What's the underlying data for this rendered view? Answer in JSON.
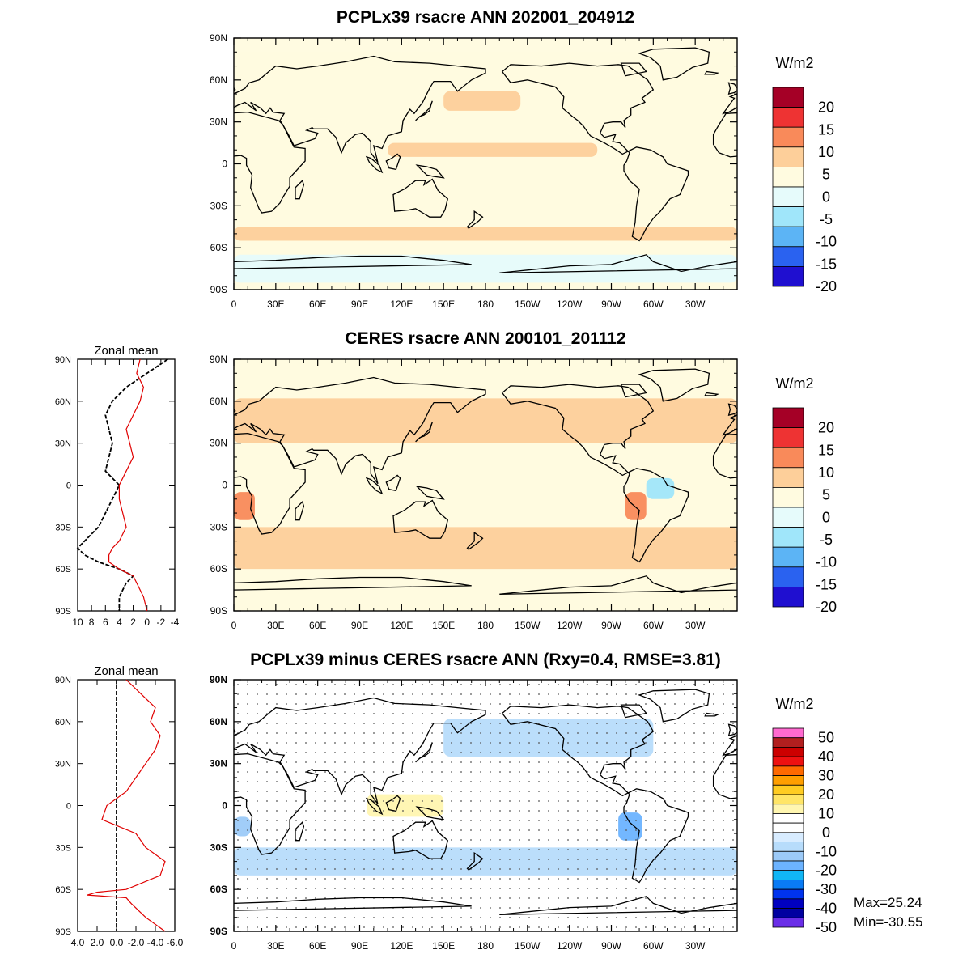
{
  "chart_data": [
    {
      "id": "model",
      "type": "heatmap",
      "title": "PCPLx39 rsacre ANN 202001_204912",
      "xticks": [
        "0",
        "30E",
        "60E",
        "90E",
        "120E",
        "150E",
        "180",
        "150W",
        "120W",
        "90W",
        "60W",
        "30W"
      ],
      "yticks": [
        "90N",
        "60N",
        "30N",
        "0",
        "30S",
        "60S",
        "90S"
      ],
      "colorbar": {
        "units": "W/m2",
        "labels": [
          "20",
          "15",
          "10",
          "5",
          "0",
          "-5",
          "-10",
          "-15",
          "-20"
        ],
        "colors": [
          "#a50026",
          "#ee3333",
          "#f98a5a",
          "#fdcf9a",
          "#fffbe0",
          "#e6fbfb",
          "#a0e6fa",
          "#5cb4f5",
          "#2a62f0",
          "#1f0fd0"
        ]
      },
      "fields": [
        {
          "name": "polar-north",
          "value": 0,
          "lat": [
            90,
            80
          ],
          "lon": [
            0,
            360
          ]
        },
        {
          "name": "north-pacific-band",
          "value": 7,
          "lat": [
            52,
            38
          ],
          "lon": [
            150,
            205
          ]
        },
        {
          "name": "tropical-pacific-band",
          "value": 7,
          "lat": [
            15,
            5
          ],
          "lon": [
            110,
            260
          ]
        },
        {
          "name": "southern-ocean-band",
          "value": 7,
          "lat": [
            -45,
            -55
          ],
          "lon": [
            0,
            360
          ]
        },
        {
          "name": "antarctic-edge",
          "value": -3,
          "lat": [
            -65,
            -85
          ],
          "lon": [
            0,
            360
          ]
        }
      ]
    },
    {
      "id": "obs",
      "type": "heatmap",
      "title": "CERES rsacre ANN 200101_201112",
      "xticks": [
        "0",
        "30E",
        "60E",
        "90E",
        "120E",
        "150E",
        "180",
        "150W",
        "120W",
        "90W",
        "60W",
        "30W"
      ],
      "yticks": [
        "90N",
        "60N",
        "30N",
        "0",
        "30S",
        "60S",
        "90S"
      ],
      "colorbar": {
        "units": "W/m2",
        "labels": [
          "20",
          "15",
          "10",
          "5",
          "0",
          "-5",
          "-10",
          "-15",
          "-20"
        ],
        "colors": [
          "#a50026",
          "#ee3333",
          "#f98a5a",
          "#fdcf9a",
          "#fffbe0",
          "#e6fbfb",
          "#a0e6fa",
          "#5cb4f5",
          "#2a62f0",
          "#1f0fd0"
        ]
      },
      "fields": [
        {
          "name": "north-ocean-band",
          "value": 7,
          "lat": [
            62,
            30
          ],
          "lon": [
            0,
            360
          ]
        },
        {
          "name": "south-ocean-band",
          "value": 7,
          "lat": [
            -30,
            -60
          ],
          "lon": [
            0,
            360
          ]
        },
        {
          "name": "southeast-pacific",
          "value": 12,
          "lat": [
            -5,
            -25
          ],
          "lon": [
            280,
            295
          ]
        },
        {
          "name": "southeast-atlantic",
          "value": 12,
          "lat": [
            -5,
            -25
          ],
          "lon": [
            0,
            15
          ]
        },
        {
          "name": "amazon",
          "value": -7,
          "lat": [
            5,
            -10
          ],
          "lon": [
            295,
            315
          ]
        }
      ],
      "zonal_mean": {
        "title": "Zonal mean",
        "xticks": [
          "10",
          "8",
          "6",
          "4",
          "2",
          "0",
          "-2",
          "-4"
        ],
        "xlim": [
          10,
          -4
        ],
        "lat": [
          90,
          80,
          70,
          60,
          50,
          40,
          30,
          20,
          10,
          0,
          -10,
          -20,
          -30,
          -40,
          -45,
          -50,
          -55,
          -60,
          -65,
          -70,
          -80,
          -90
        ],
        "series": [
          {
            "style": "black-dashed",
            "values": [
              -3,
              0,
              3,
              5,
              6,
              5.5,
              5,
              5.5,
              6,
              4,
              5,
              6,
              7,
              9,
              10,
              9,
              7,
              4,
              2,
              3,
              4,
              4
            ]
          },
          {
            "style": "red-solid",
            "values": [
              1,
              1.5,
              0.5,
              1,
              2,
              3,
              2.5,
              2,
              3,
              4,
              4,
              3.5,
              3,
              4,
              5,
              5.5,
              5.5,
              4,
              2,
              1.5,
              0.5,
              0
            ]
          }
        ]
      }
    },
    {
      "id": "diff",
      "type": "heatmap",
      "title": "PCPLx39 minus CERES rsacre ANN (Rxy=0.4, RMSE=3.81)",
      "xticks": [
        "0",
        "30E",
        "60E",
        "90E",
        "120E",
        "150E",
        "180",
        "150W",
        "120W",
        "90W",
        "60W",
        "30W"
      ],
      "yticks": [
        "90N",
        "60N",
        "30N",
        "0",
        "30S",
        "60S",
        "90S"
      ],
      "colorbar": {
        "units": "W/m2",
        "labels": [
          "50",
          "40",
          "30",
          "20",
          "10",
          "0",
          "-10",
          "-20",
          "-30",
          "-40",
          "-50"
        ],
        "colors": [
          "#ff6ad0",
          "#b21f1f",
          "#cc0000",
          "#ee1111",
          "#ff6a00",
          "#ff9f00",
          "#ffcc22",
          "#ffe566",
          "#fff6b0",
          "#ffffff",
          "#ffffff",
          "#d8ecff",
          "#b7dcfb",
          "#9ccaf8",
          "#6cb3ff",
          "#11b6f5",
          "#0a7bf5",
          "#0033ee",
          "#0000c0",
          "#0000a0",
          "#6a2ee8"
        ]
      },
      "stats": {
        "max": "Max=25.24",
        "min": "Min=-30.55"
      },
      "fields": [
        {
          "name": "north-pacific-ocean",
          "value": -3,
          "lat": [
            62,
            35
          ],
          "lon": [
            150,
            300
          ]
        },
        {
          "name": "south-ocean",
          "value": -3,
          "lat": [
            -30,
            -50
          ],
          "lon": [
            0,
            360
          ]
        },
        {
          "name": "amazon-positive",
          "value": 8,
          "lat": [
            8,
            -12
          ],
          "lon": [
            290,
            320
          ]
        },
        {
          "name": "maritime-continent",
          "value": 10,
          "lat": [
            8,
            -8
          ],
          "lon": [
            95,
            150
          ]
        },
        {
          "name": "southeast-pacific-negative",
          "value": -12,
          "lat": [
            -5,
            -25
          ],
          "lon": [
            275,
            292
          ]
        },
        {
          "name": "southeast-atlantic-negative",
          "value": -10,
          "lat": [
            -8,
            -22
          ],
          "lon": [
            0,
            12
          ]
        }
      ],
      "zonal_mean": {
        "title": "Zonal mean",
        "xticks": [
          "4.0",
          "2.0",
          "0.0",
          "-2.0",
          "-4.0",
          "-6.0"
        ],
        "xlim": [
          4,
          -6
        ],
        "lat": [
          90,
          80,
          70,
          60,
          50,
          40,
          30,
          20,
          10,
          0,
          -10,
          -20,
          -30,
          -40,
          -50,
          -60,
          -62,
          -64,
          -66,
          -70,
          -80,
          -90
        ],
        "series": [
          {
            "style": "black-dashed",
            "values": [
              0,
              0,
              0,
              0,
              0,
              0,
              0,
              0,
              0,
              0,
              0,
              0,
              0,
              0,
              0,
              0,
              0,
              0,
              0,
              0,
              0,
              0
            ]
          },
          {
            "style": "red-solid",
            "values": [
              -1,
              -2.5,
              -4,
              -3.5,
              -4.5,
              -4,
              -3,
              -2,
              -1,
              1,
              1.5,
              -2,
              -3,
              -5,
              -4.5,
              -1,
              2,
              3,
              -1,
              -1.5,
              -3,
              -5
            ]
          }
        ]
      }
    }
  ]
}
